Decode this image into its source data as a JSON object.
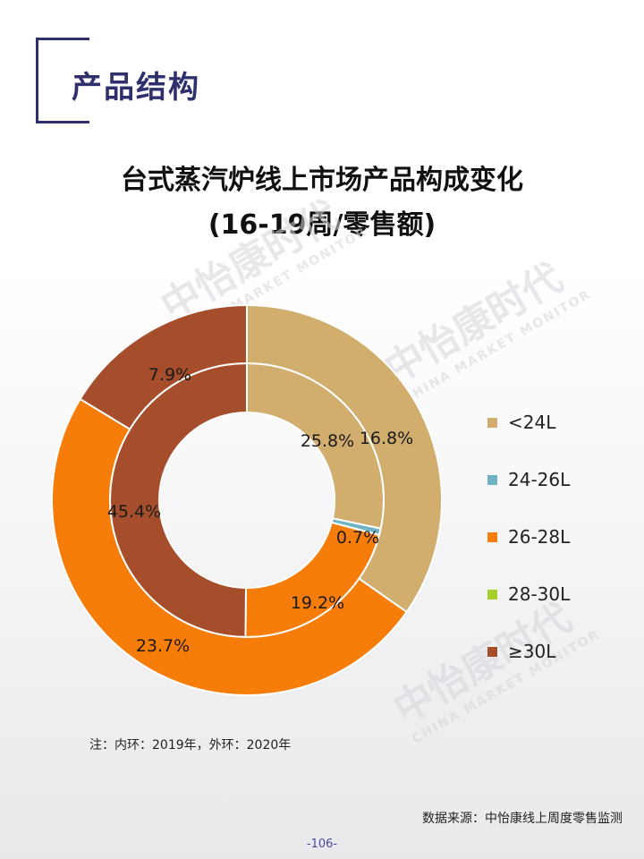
{
  "header": {
    "section_title": "产品结构"
  },
  "chart_data": {
    "type": "pie",
    "title": "台式蒸汽炉线上市场产品构成变化",
    "subtitle": "(16-19周/零售额)",
    "categories": [
      "<24L",
      "24-26L",
      "26-28L",
      "28-30L",
      "≥30L"
    ],
    "colors": [
      "#d1ad6e",
      "#6db3c4",
      "#f77d0a",
      "#a7cf2c",
      "#a64e2c"
    ],
    "series": [
      {
        "ring": "inner",
        "values": [
          25.8,
          0.7,
          19.2,
          0.0,
          45.4
        ],
        "labels": [
          "25.8%",
          "0.7%",
          "19.2%",
          "",
          "45.4%"
        ]
      },
      {
        "ring": "outer",
        "values": [
          16.8,
          0.0,
          23.7,
          0.0,
          7.9
        ],
        "labels": [
          "16.8%",
          "",
          "23.7%",
          "",
          "7.9%"
        ]
      }
    ],
    "legend_position": "right"
  },
  "note": "注：内环：2019年，外环：2020年",
  "source": "数据来源：中怡康线上周度零售监测",
  "page_number": "-106-",
  "watermark": {
    "brand": "中怡康时代",
    "sub": "CHINA MARKET MONITOR"
  }
}
